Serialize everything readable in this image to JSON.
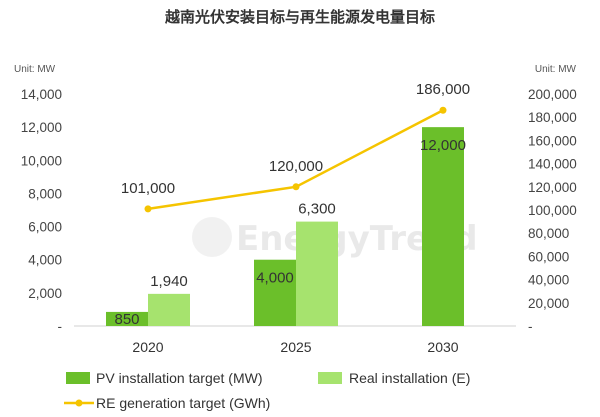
{
  "chart_data": {
    "type": "bar",
    "title": "越南光伏安装目标与再生能源发电量目标",
    "categories": [
      "2020",
      "2025",
      "2030"
    ],
    "left_axis": {
      "unit_label": "Unit: MW",
      "ylim": [
        0,
        14000
      ],
      "ticks": [
        "-",
        "2,000",
        "4,000",
        "6,000",
        "8,000",
        "10,000",
        "12,000",
        "14,000"
      ]
    },
    "right_axis": {
      "unit_label": "Unit: MW",
      "ylim": [
        0,
        200000
      ],
      "ticks": [
        "-",
        "20,000",
        "40,000",
        "60,000",
        "80,000",
        "100,000",
        "120,000",
        "140,000",
        "160,000",
        "180,000",
        "200,000"
      ]
    },
    "series": [
      {
        "name": "PV installation target (MW)",
        "type": "bar",
        "axis": "left",
        "color": "#6bbf2a",
        "values": [
          850,
          4000,
          12000
        ],
        "labels": [
          "850",
          "4,000",
          "12,000"
        ]
      },
      {
        "name": "Real installation (E)",
        "type": "bar",
        "axis": "left",
        "color": "#a6e36e",
        "values": [
          1940,
          6300,
          null
        ],
        "labels": [
          "1,940",
          "6,300",
          null
        ]
      },
      {
        "name": "RE generation target (GWh)",
        "type": "line",
        "axis": "right",
        "color": "#f5c400",
        "values": [
          101000,
          120000,
          186000
        ],
        "labels": [
          "101,000",
          "120,000",
          "186,000"
        ]
      }
    ],
    "legend_position": "bottom",
    "grid": false,
    "watermark": "EnergyTrend"
  }
}
